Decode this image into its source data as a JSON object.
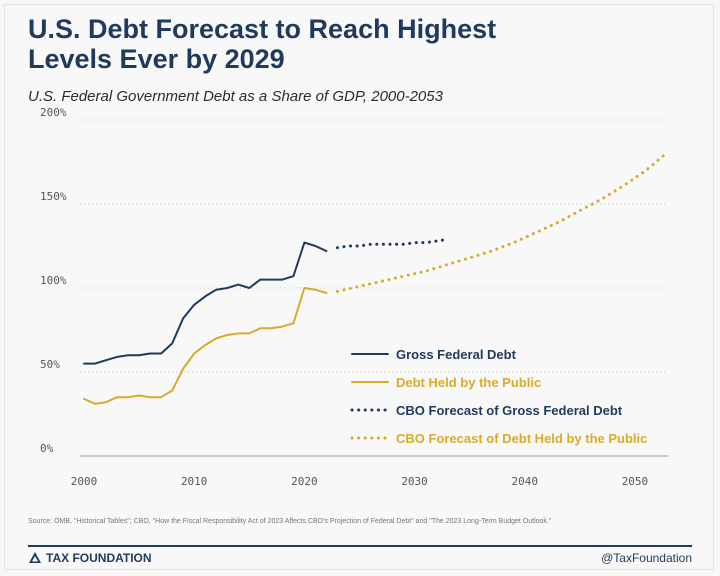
{
  "header": {
    "title_line1": "U.S. Debt Forecast to Reach Highest",
    "title_line2": "Levels Ever by 2029",
    "subtitle": "U.S. Federal Government Debt as a Share of GDP, 2000-2053"
  },
  "footer": {
    "source": "Source: OMB, \"Historical Tables\"; CBO, \"How the Fiscal Responsibility Act of 2023 Affects CBO's Projection of Federal Debt\" and \"The 2023 Long-Term Budget Outlook.\"",
    "brand": "TAX FOUNDATION",
    "handle": "@TaxFoundation"
  },
  "colors": {
    "navy": "#1f3a5c",
    "gold": "#d9aa2b",
    "grid": "#c9c9c9"
  },
  "chart_data": {
    "type": "line",
    "title": "U.S. Debt Forecast to Reach Highest Levels Ever by 2029",
    "subtitle": "U.S. Federal Government Debt as a Share of GDP, 2000-2053",
    "xlim": [
      2000,
      2053
    ],
    "ylim": [
      0,
      200
    ],
    "x_ticks": [
      2000,
      2010,
      2020,
      2030,
      2040,
      2050
    ],
    "x_tick_labels": [
      "2000",
      "2010",
      "2020",
      "2030",
      "2040",
      "2050"
    ],
    "y_ticks": [
      0,
      50,
      100,
      150,
      200
    ],
    "y_tick_labels": [
      "0%",
      "50%",
      "100%",
      "150%",
      "200%"
    ],
    "grid": "horizontal dotted",
    "legend_position": "center-right",
    "series": [
      {
        "name": "Gross Federal Debt",
        "style": "solid",
        "color": "#1f3a5c",
        "x": [
          2000,
          2001,
          2002,
          2003,
          2004,
          2005,
          2006,
          2007,
          2008,
          2009,
          2010,
          2011,
          2012,
          2013,
          2014,
          2015,
          2016,
          2017,
          2018,
          2019,
          2020,
          2021,
          2022
        ],
        "y": [
          55,
          55,
          57,
          59,
          60,
          60,
          61,
          61,
          67,
          82,
          90,
          95,
          99,
          100,
          102,
          100,
          105,
          105,
          105,
          107,
          127,
          125,
          122
        ]
      },
      {
        "name": "Debt Held by the Public",
        "style": "solid",
        "color": "#d9aa2b",
        "x": [
          2000,
          2001,
          2002,
          2003,
          2004,
          2005,
          2006,
          2007,
          2008,
          2009,
          2010,
          2011,
          2012,
          2013,
          2014,
          2015,
          2016,
          2017,
          2018,
          2019,
          2020,
          2021,
          2022
        ],
        "y": [
          34,
          31,
          32,
          35,
          35,
          36,
          35,
          35,
          39,
          52,
          61,
          66,
          70,
          72,
          73,
          73,
          76,
          76,
          77,
          79,
          100,
          99,
          97
        ]
      },
      {
        "name": "CBO Forecast of Gross Federal Debt",
        "style": "dotted",
        "color": "#1f3a5c",
        "x": [
          2023,
          2024,
          2025,
          2026,
          2027,
          2028,
          2029,
          2030,
          2031,
          2032,
          2033
        ],
        "y": [
          124,
          125,
          125,
          126,
          126,
          126,
          126,
          127,
          127,
          128,
          129
        ]
      },
      {
        "name": "CBO Forecast of Debt Held by the Public",
        "style": "dotted",
        "color": "#d9aa2b",
        "x": [
          2023,
          2025,
          2027,
          2029,
          2031,
          2033,
          2035,
          2037,
          2039,
          2041,
          2043,
          2045,
          2047,
          2049,
          2051,
          2053
        ],
        "y": [
          98,
          101,
          104,
          107,
          110,
          114,
          118,
          122,
          127,
          133,
          139,
          146,
          153,
          161,
          170,
          181
        ]
      }
    ]
  }
}
